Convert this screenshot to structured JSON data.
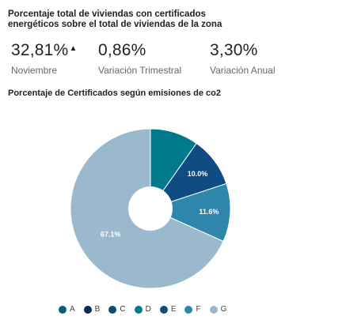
{
  "header": {
    "title": "Porcentaje total de viviendas con certificados energéticos sobre el total de viviendas de la zona"
  },
  "stats": [
    {
      "value": "32,81%",
      "label": "Noviembre",
      "trend_icon": "triangle-up-icon",
      "trend_glyph": "▲"
    },
    {
      "value": "0,86%",
      "label": "Variación Trimestral"
    },
    {
      "value": "3,30%",
      "label": "Variación Anual"
    }
  ],
  "chart_title": "Porcentaje de Certificados según emisiones de co2",
  "chart_data": {
    "type": "pie",
    "title": "Porcentaje de Certificados según emisiones de co2",
    "donut": true,
    "categories": [
      "A",
      "B",
      "C",
      "D",
      "E",
      "F",
      "G"
    ],
    "values": [
      0,
      0,
      0,
      9.6,
      10.0,
      11.6,
      67.1
    ],
    "value_labels": [
      "",
      "",
      "",
      "",
      "10.0%",
      "11.6%",
      "67.1%"
    ],
    "colors": [
      "#0a5f73",
      "#0a2a55",
      "#0b4a75",
      "#00798c",
      "#0f4c81",
      "#2e86ab",
      "#9bb9cc"
    ],
    "legend_position": "bottom"
  }
}
